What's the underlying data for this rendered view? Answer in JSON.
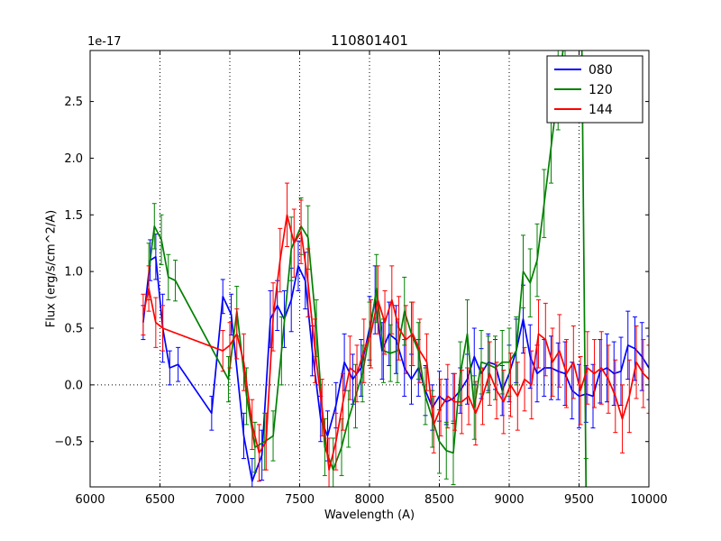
{
  "window": {
    "background": "#ffffff"
  },
  "chart_data": {
    "type": "line",
    "title": "110801401",
    "xlabel": "Wavelength (A)",
    "ylabel": "Flux (erg/s/cm^2/A)",
    "y_offset_label": "1e-17",
    "xlim": [
      6000,
      10000
    ],
    "ylim": [
      -0.9,
      2.95
    ],
    "xticks": [
      6000,
      6500,
      7000,
      7500,
      8000,
      8500,
      9000,
      9500,
      10000
    ],
    "xtick_labels": [
      "6000",
      "6500",
      "7000",
      "7500",
      "8000",
      "8500",
      "9000",
      "9500",
      "10000"
    ],
    "yticks": [
      -0.5,
      0.0,
      0.5,
      1.0,
      1.5,
      2.0,
      2.5
    ],
    "ytick_labels": [
      "−0.5",
      "0.0",
      "0.5",
      "1.0",
      "1.5",
      "2.0",
      "2.5"
    ],
    "grid": {
      "style": "dotted",
      "vertical_at_xticks": true,
      "horizontal_at_zero": true
    },
    "legend": {
      "position": "upper right",
      "entries": [
        "080",
        "120",
        "144"
      ]
    },
    "series": [
      {
        "name": "080",
        "color": "#0000ff",
        "x": [
          6380,
          6430,
          6470,
          6520,
          6570,
          6630,
          6870,
          6950,
          7010,
          7100,
          7160,
          7230,
          7290,
          7340,
          7390,
          7440,
          7490,
          7540,
          7590,
          7650,
          7700,
          7760,
          7820,
          7880,
          7940,
          8000,
          8040,
          8090,
          8140,
          8190,
          8250,
          8300,
          8350,
          8400,
          8450,
          8500,
          8550,
          8600,
          8650,
          8700,
          8750,
          8800,
          8850,
          8900,
          8950,
          9000,
          9050,
          9100,
          9150,
          9200,
          9250,
          9300,
          9350,
          9400,
          9450,
          9500,
          9550,
          9600,
          9650,
          9700,
          9750,
          9800,
          9850,
          9900,
          9950,
          10000
        ],
        "y": [
          0.55,
          1.1,
          1.13,
          0.5,
          0.15,
          0.18,
          -0.25,
          0.78,
          0.62,
          -0.45,
          -0.85,
          -0.62,
          0.58,
          0.7,
          0.58,
          0.75,
          1.05,
          0.92,
          0.3,
          -0.3,
          -0.45,
          -0.18,
          0.2,
          0.05,
          0.15,
          0.5,
          0.75,
          0.3,
          0.45,
          0.4,
          0.15,
          0.05,
          0.15,
          -0.05,
          -0.2,
          -0.1,
          -0.15,
          -0.12,
          -0.05,
          0.05,
          0.25,
          0.1,
          0.2,
          0.18,
          -0.05,
          0.1,
          0.3,
          0.58,
          0.25,
          0.1,
          0.15,
          0.15,
          0.12,
          0.1,
          -0.05,
          -0.1,
          -0.08,
          -0.1,
          0.12,
          0.15,
          0.1,
          0.12,
          0.35,
          0.32,
          0.25,
          0.15
        ],
        "yerr": [
          0.15,
          0.18,
          0.2,
          0.3,
          0.15,
          0.15,
          0.15,
          0.15,
          0.18,
          0.2,
          0.2,
          0.22,
          0.25,
          0.22,
          0.25,
          0.28,
          0.22,
          0.25,
          0.22,
          0.2,
          0.22,
          0.2,
          0.25,
          0.22,
          0.25,
          0.28,
          0.3,
          0.25,
          0.28,
          0.3,
          0.25,
          0.22,
          0.25,
          0.22,
          0.2,
          0.22,
          0.2,
          0.22,
          0.2,
          0.22,
          0.25,
          0.22,
          0.25,
          0.22,
          0.22,
          0.25,
          0.28,
          0.3,
          0.28,
          0.25,
          0.25,
          0.28,
          0.25,
          0.28,
          0.25,
          0.28,
          0.25,
          0.28,
          0.28,
          0.3,
          0.28,
          0.3,
          0.3,
          0.28,
          0.3,
          0.28
        ]
      },
      {
        "name": "120",
        "color": "#008000",
        "x": [
          6420,
          6460,
          6510,
          6560,
          6610,
          6990,
          7050,
          7120,
          7180,
          7250,
          7310,
          7370,
          7440,
          7510,
          7560,
          7620,
          7680,
          7740,
          7800,
          7850,
          7900,
          7950,
          8000,
          8050,
          8100,
          8150,
          8200,
          8250,
          8300,
          8350,
          8400,
          8450,
          8500,
          8550,
          8600,
          8650,
          8700,
          8750,
          8800,
          8850,
          8900,
          8950,
          9000,
          9050,
          9100,
          9150,
          9200,
          9250,
          9300,
          9350,
          9400,
          9460,
          9520,
          9550
        ],
        "y": [
          1.0,
          1.4,
          1.28,
          0.95,
          0.92,
          0.05,
          0.65,
          -0.1,
          -0.55,
          -0.5,
          -0.45,
          0.3,
          1.2,
          1.4,
          1.3,
          0.5,
          -0.55,
          -0.75,
          -0.55,
          -0.3,
          -0.1,
          0.1,
          0.45,
          0.85,
          0.3,
          0.28,
          0.3,
          0.65,
          0.45,
          0.3,
          -0.1,
          -0.3,
          -0.5,
          -0.58,
          -0.6,
          0.1,
          0.45,
          -0.2,
          0.2,
          0.18,
          0.15,
          0.2,
          0.2,
          0.3,
          1.0,
          0.9,
          1.1,
          1.6,
          2.1,
          2.6,
          3.1,
          3.3,
          3.0,
          -0.95
        ],
        "yerr": [
          0.25,
          0.2,
          0.22,
          0.2,
          0.18,
          0.2,
          0.22,
          0.25,
          0.22,
          0.25,
          0.22,
          0.3,
          0.28,
          0.25,
          0.28,
          0.25,
          0.25,
          0.28,
          0.25,
          0.25,
          0.28,
          0.25,
          0.28,
          0.3,
          0.28,
          0.25,
          0.28,
          0.3,
          0.28,
          0.25,
          0.25,
          0.25,
          0.28,
          0.25,
          0.28,
          0.28,
          0.3,
          0.28,
          0.28,
          0.25,
          0.28,
          0.28,
          0.3,
          0.3,
          0.32,
          0.3,
          0.32,
          0.3,
          0.32,
          0.35,
          0.35,
          0.35,
          0.35,
          0.3
        ]
      },
      {
        "name": "144",
        "color": "#ff0000",
        "x": [
          6380,
          6420,
          6470,
          6520,
          6950,
          7000,
          7050,
          7100,
          7160,
          7210,
          7260,
          7310,
          7360,
          7410,
          7460,
          7510,
          7560,
          7610,
          7660,
          7710,
          7760,
          7810,
          7860,
          7910,
          7960,
          8010,
          8060,
          8110,
          8160,
          8210,
          8260,
          8310,
          8360,
          8410,
          8460,
          8510,
          8560,
          8610,
          8660,
          8710,
          8760,
          8810,
          8860,
          8910,
          8960,
          9010,
          9060,
          9110,
          9160,
          9210,
          9260,
          9310,
          9360,
          9410,
          9460,
          9510,
          9560,
          9610,
          9660,
          9710,
          9760,
          9810,
          9860,
          9910,
          9960,
          10000
        ],
        "y": [
          0.62,
          0.85,
          0.55,
          0.5,
          0.3,
          0.35,
          0.45,
          0.2,
          -0.35,
          -0.6,
          -0.5,
          0.6,
          1.1,
          1.5,
          1.25,
          1.35,
          0.9,
          0.3,
          -0.2,
          -0.75,
          -0.5,
          -0.15,
          0.15,
          0.1,
          0.3,
          0.45,
          0.75,
          0.55,
          0.75,
          0.5,
          0.4,
          0.45,
          0.3,
          0.2,
          -0.35,
          -0.2,
          -0.1,
          -0.15,
          -0.15,
          -0.1,
          -0.25,
          -0.1,
          0.1,
          -0.05,
          -0.15,
          0.0,
          -0.1,
          0.05,
          0.0,
          0.45,
          0.4,
          0.2,
          0.3,
          0.1,
          0.2,
          -0.05,
          0.15,
          0.1,
          0.15,
          0.05,
          -0.1,
          -0.3,
          -0.1,
          0.2,
          0.1,
          0.05
        ],
        "yerr": [
          0.18,
          0.2,
          0.22,
          0.2,
          0.18,
          0.2,
          0.22,
          0.25,
          0.22,
          0.25,
          0.25,
          0.3,
          0.28,
          0.28,
          0.3,
          0.28,
          0.3,
          0.28,
          0.25,
          0.28,
          0.25,
          0.25,
          0.28,
          0.25,
          0.28,
          0.3,
          0.3,
          0.28,
          0.3,
          0.28,
          0.3,
          0.28,
          0.28,
          0.25,
          0.25,
          0.25,
          0.28,
          0.25,
          0.28,
          0.25,
          0.28,
          0.25,
          0.28,
          0.25,
          0.28,
          0.28,
          0.3,
          0.28,
          0.3,
          0.3,
          0.32,
          0.3,
          0.32,
          0.3,
          0.32,
          0.3,
          0.32,
          0.3,
          0.32,
          0.3,
          0.32,
          0.3,
          0.32,
          0.32,
          0.3,
          0.3
        ]
      }
    ]
  }
}
